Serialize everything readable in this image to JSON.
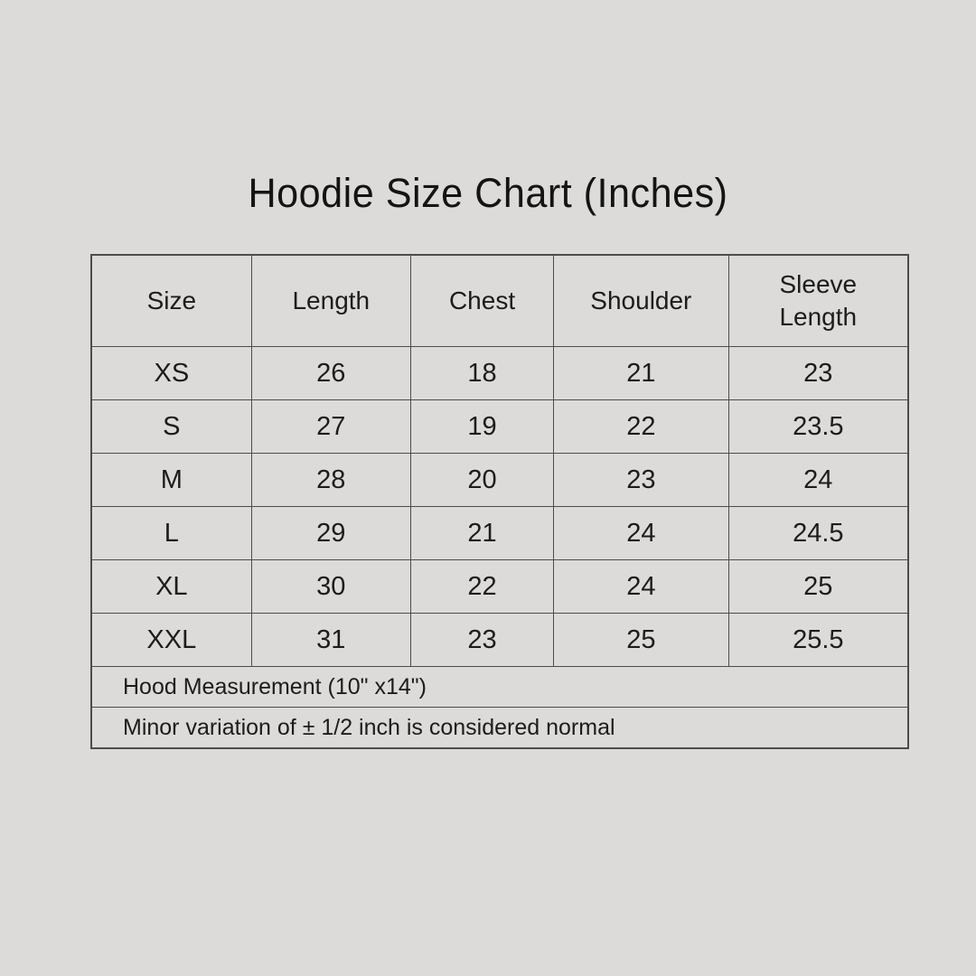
{
  "title": "Hoodie Size Chart (Inches)",
  "table": {
    "columns": {
      "size": "Size",
      "length": "Length",
      "chest": "Chest",
      "shoulder": "Shoulder",
      "sleeve": "Sleeve Length"
    },
    "rows": [
      {
        "size": "XS",
        "length": "26",
        "chest": "18",
        "shoulder": "21",
        "sleeve": "23"
      },
      {
        "size": "S",
        "length": "27",
        "chest": "19",
        "shoulder": "22",
        "sleeve": "23.5"
      },
      {
        "size": "M",
        "length": "28",
        "chest": "20",
        "shoulder": "23",
        "sleeve": "24"
      },
      {
        "size": "L",
        "length": "29",
        "chest": "21",
        "shoulder": "24",
        "sleeve": "24.5"
      },
      {
        "size": "XL",
        "length": "30",
        "chest": "22",
        "shoulder": "24",
        "sleeve": "25"
      },
      {
        "size": "XXL",
        "length": "31",
        "chest": "23",
        "shoulder": "25",
        "sleeve": "25.5"
      }
    ],
    "notes": [
      "Hood Measurement (10\" x14\")",
      "Minor variation of ± 1/2 inch is considered normal"
    ]
  },
  "colors": {
    "background": "#dcdbd9",
    "border": "#4c4c4c",
    "text": "#1c1c1c"
  }
}
